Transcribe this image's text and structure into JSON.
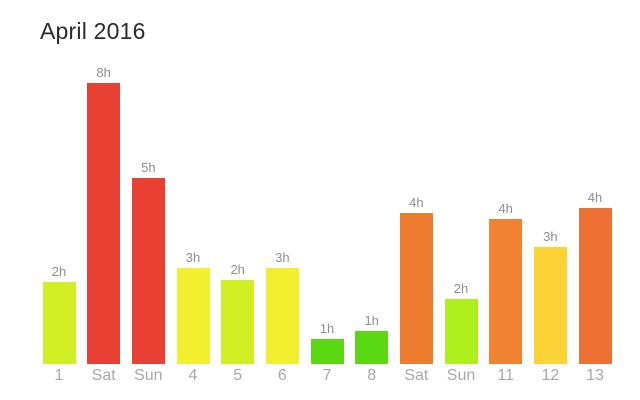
{
  "title": "April 2016",
  "colors": {
    "background": "#ffffff",
    "title_text": "#2b2b2b",
    "value_label_text": "#8f8f8f",
    "axis_label_text": "#a8a8a8"
  },
  "chart_data": {
    "type": "bar",
    "title": "April 2016",
    "xlabel": "",
    "ylabel": "",
    "grid": false,
    "legend": false,
    "y_axis_visible": false,
    "x_axis_line_visible": false,
    "ylim_hours": [
      0,
      8
    ],
    "categories": [
      "1",
      "Sat",
      "Sun",
      "4",
      "5",
      "6",
      "7",
      "8",
      "Sat",
      "Sun",
      "11",
      "12",
      "13"
    ],
    "value_labels": [
      "2h",
      "8h",
      "5h",
      "3h",
      "2h",
      "3h",
      "1h",
      "1h",
      "4h",
      "2h",
      "4h",
      "3h",
      "4h"
    ],
    "values_hours_rounded": [
      2,
      8,
      5,
      3,
      2,
      3,
      1,
      1,
      4,
      2,
      4,
      3,
      4
    ],
    "values_hours_precise_est": [
      2.34,
      8.0,
      5.3,
      2.73,
      2.39,
      2.73,
      0.71,
      0.94,
      4.3,
      1.85,
      4.13,
      3.33,
      4.44
    ],
    "bar_colors": [
      "#d2ee24",
      "#e84134",
      "#e84134",
      "#f1ef2e",
      "#d2ee24",
      "#f1ef2e",
      "#5ad812",
      "#5ad812",
      "#ee7c2f",
      "#aef01e",
      "#ef8331",
      "#fbd335",
      "#ed7133"
    ],
    "color_scale_note": "green (short duration) through yellow and orange to red (long duration)"
  }
}
